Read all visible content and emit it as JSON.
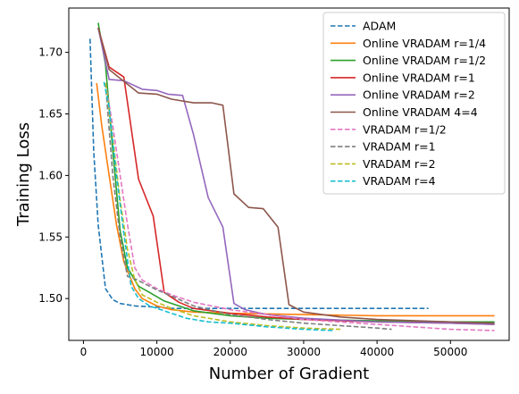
{
  "chart_data": {
    "type": "line",
    "title": "",
    "xlabel": "Number of Gradient",
    "ylabel": "Training Loss",
    "xlim": [
      -2000,
      58000
    ],
    "ylim": [
      1.466,
      1.736
    ],
    "xticks": [
      0,
      10000,
      20000,
      30000,
      40000,
      50000
    ],
    "xtick_labels": [
      "0",
      "10000",
      "20000",
      "30000",
      "40000",
      "50000"
    ],
    "yticks": [
      1.5,
      1.55,
      1.6,
      1.65,
      1.7
    ],
    "ytick_labels": [
      "1.50",
      "1.55",
      "1.60",
      "1.65",
      "1.70"
    ],
    "grid": false,
    "legend_position": "top-right",
    "series": [
      {
        "name": "ADAM",
        "color": "#1f77b4",
        "dashed": true,
        "x": [
          900,
          1400,
          2000,
          3000,
          4000,
          5000,
          7000,
          10000,
          12000,
          15000,
          20000,
          30000,
          40000,
          47000
        ],
        "y": [
          1.711,
          1.62,
          1.56,
          1.508,
          1.499,
          1.496,
          1.494,
          1.493,
          1.492,
          1.492,
          1.492,
          1.492,
          1.492,
          1.492
        ]
      },
      {
        "name": "Online VRADAM r=1/4",
        "color": "#ff7f0e",
        "dashed": false,
        "x": [
          1800,
          2500,
          3500,
          4500,
          5500,
          7000,
          8000,
          10000,
          12000,
          15000,
          20000,
          30000,
          40000,
          50000,
          56000
        ],
        "y": [
          1.675,
          1.64,
          1.6,
          1.56,
          1.53,
          1.508,
          1.5,
          1.494,
          1.491,
          1.489,
          1.488,
          1.487,
          1.486,
          1.486,
          1.486
        ]
      },
      {
        "name": "Online VRADAM r=1/2",
        "color": "#2ca02c",
        "dashed": false,
        "x": [
          2000,
          3000,
          4000,
          5000,
          6000,
          7500,
          9000,
          11000,
          15000,
          20000,
          25000,
          30000,
          40000,
          50000,
          56000
        ],
        "y": [
          1.724,
          1.69,
          1.62,
          1.555,
          1.525,
          1.51,
          1.505,
          1.498,
          1.49,
          1.486,
          1.484,
          1.483,
          1.482,
          1.481,
          1.481
        ]
      },
      {
        "name": "Online VRADAM r=1",
        "color": "#d62728",
        "dashed": false,
        "x": [
          2000,
          3500,
          5500,
          7500,
          9500,
          11000,
          13000,
          15000,
          20000,
          25000,
          30000,
          40000,
          50000,
          56000
        ],
        "y": [
          1.72,
          1.688,
          1.68,
          1.597,
          1.567,
          1.505,
          1.497,
          1.492,
          1.488,
          1.485,
          1.483,
          1.481,
          1.48,
          1.479
        ]
      },
      {
        "name": "Online VRADAM r=2",
        "color": "#9467bd",
        "dashed": false,
        "x": [
          2000,
          3500,
          5500,
          8000,
          10000,
          11500,
          13500,
          15000,
          17000,
          19000,
          20500,
          22000,
          25000,
          30000,
          40000,
          50000,
          56000
        ],
        "y": [
          1.72,
          1.678,
          1.677,
          1.67,
          1.669,
          1.666,
          1.665,
          1.633,
          1.582,
          1.558,
          1.496,
          1.491,
          1.487,
          1.484,
          1.481,
          1.48,
          1.479
        ]
      },
      {
        "name": "Online VRADAM 4=4",
        "color": "#8c564b",
        "dashed": false,
        "x": [
          2000,
          3500,
          7500,
          10000,
          12000,
          15000,
          17500,
          19000,
          20500,
          22500,
          24500,
          26500,
          28000,
          30000,
          35000,
          40000,
          50000,
          56000
        ],
        "y": [
          1.72,
          1.686,
          1.667,
          1.666,
          1.662,
          1.659,
          1.659,
          1.657,
          1.585,
          1.574,
          1.573,
          1.558,
          1.495,
          1.489,
          1.485,
          1.483,
          1.481,
          1.48
        ]
      },
      {
        "name": "VRADAM r=1/2",
        "color": "#e377c2",
        "dashed": true,
        "x": [
          3000,
          4000,
          5000,
          6000,
          7000,
          8000,
          10000,
          12000,
          15000,
          20000,
          25000,
          30000,
          40000,
          50000,
          56000
        ],
        "y": [
          1.675,
          1.64,
          1.6,
          1.56,
          1.525,
          1.515,
          1.508,
          1.503,
          1.497,
          1.491,
          1.487,
          1.483,
          1.479,
          1.475,
          1.474
        ]
      },
      {
        "name": "VRADAM r=1",
        "color": "#7f7f7f",
        "dashed": true,
        "x": [
          3000,
          4000,
          5000,
          6000,
          7000,
          8000,
          10000,
          12000,
          15000,
          20000,
          25000,
          30000,
          35000,
          40000,
          42000
        ],
        "y": [
          1.675,
          1.6,
          1.55,
          1.518,
          1.516,
          1.513,
          1.507,
          1.502,
          1.494,
          1.487,
          1.483,
          1.48,
          1.478,
          1.476,
          1.475
        ]
      },
      {
        "name": "VRADAM r=2",
        "color": "#bcbd22",
        "dashed": true,
        "x": [
          3000,
          4000,
          5000,
          6000,
          7000,
          8000,
          10000,
          12000,
          15000,
          20000,
          25000,
          30000,
          35000
        ],
        "y": [
          1.675,
          1.63,
          1.58,
          1.54,
          1.515,
          1.503,
          1.497,
          1.492,
          1.486,
          1.481,
          1.478,
          1.476,
          1.475
        ]
      },
      {
        "name": "VRADAM r=4",
        "color": "#17becf",
        "dashed": true,
        "x": [
          2800,
          3500,
          4500,
          5500,
          6500,
          7500,
          9000,
          11000,
          14000,
          17000,
          20000,
          25000,
          30000,
          34000
        ],
        "y": [
          1.676,
          1.655,
          1.6,
          1.553,
          1.51,
          1.5,
          1.494,
          1.49,
          1.484,
          1.481,
          1.48,
          1.477,
          1.475,
          1.474
        ]
      }
    ]
  }
}
